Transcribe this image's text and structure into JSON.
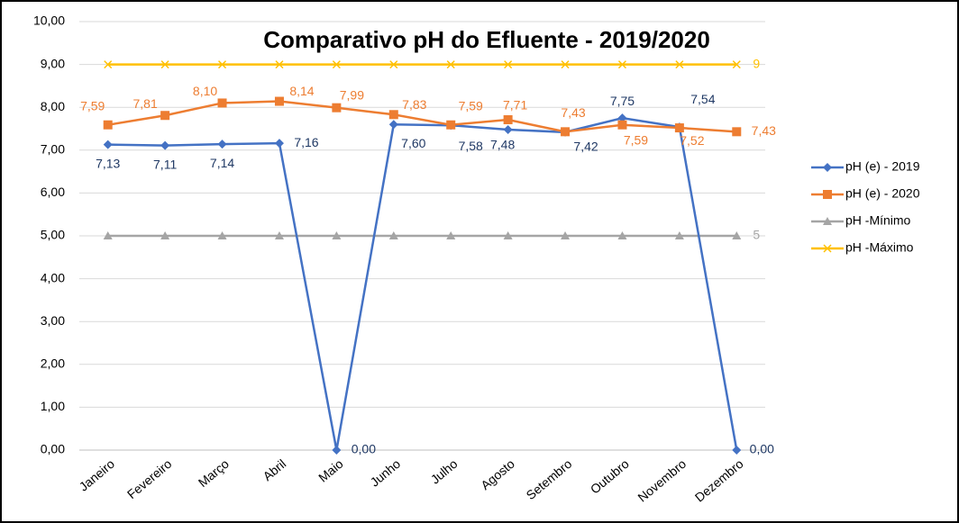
{
  "chart_data": {
    "type": "line",
    "title": "Comparativo pH do Efluente - 2019/2020",
    "categories": [
      "Janeiro",
      "Fevereiro",
      "Março",
      "Abril",
      "Maio",
      "Junho",
      "Julho",
      "Agosto",
      "Setembro",
      "Outubro",
      "Novembro",
      "Dezembro"
    ],
    "series": [
      {
        "name": "pH (e)  - 2019",
        "color": "#4472c4",
        "marker": "diamond",
        "values": [
          7.13,
          7.11,
          7.14,
          7.16,
          0.0,
          7.6,
          7.58,
          7.48,
          7.42,
          7.75,
          7.54,
          0.0
        ],
        "value_labels": [
          "7,13",
          "7,11",
          "7,14",
          "7,16",
          "0,00",
          "7,60",
          "7,58",
          "7,48",
          "7,42",
          "7,75",
          "7,54",
          "0,00"
        ]
      },
      {
        "name": "pH (e)  - 2020",
        "color": "#ed7d31",
        "marker": "square",
        "values": [
          7.59,
          7.81,
          8.1,
          8.14,
          7.99,
          7.83,
          7.59,
          7.71,
          7.43,
          7.59,
          7.52,
          7.43
        ],
        "value_labels": [
          "7,59",
          "7,81",
          "8,10",
          "8,14",
          "7,99",
          "7,83",
          "7,59",
          "7,71",
          "7,43",
          "7,59",
          "7,52",
          "7,43"
        ]
      },
      {
        "name": "pH -Mínimo",
        "color": "#a5a5a5",
        "marker": "triangle",
        "values": [
          5,
          5,
          5,
          5,
          5,
          5,
          5,
          5,
          5,
          5,
          5,
          5
        ],
        "value_labels": [
          null,
          null,
          null,
          null,
          null,
          null,
          null,
          null,
          null,
          null,
          null,
          "5"
        ]
      },
      {
        "name": "pH -Máximo",
        "color": "#ffc000",
        "marker": "x",
        "values": [
          9,
          9,
          9,
          9,
          9,
          9,
          9,
          9,
          9,
          9,
          9,
          9
        ],
        "value_labels": [
          null,
          null,
          null,
          null,
          null,
          null,
          null,
          null,
          null,
          null,
          null,
          "9"
        ]
      }
    ],
    "ylim": [
      0,
      10
    ],
    "yticks": [
      {
        "value": 0,
        "label": "0,00"
      },
      {
        "value": 1,
        "label": "1,00"
      },
      {
        "value": 2,
        "label": "2,00"
      },
      {
        "value": 3,
        "label": "3,00"
      },
      {
        "value": 4,
        "label": "4,00"
      },
      {
        "value": 5,
        "label": "5,00"
      },
      {
        "value": 6,
        "label": "6,00"
      },
      {
        "value": 7,
        "label": "7,00"
      },
      {
        "value": 8,
        "label": "8,00"
      },
      {
        "value": 9,
        "label": "9,00"
      },
      {
        "value": 10,
        "label": "10,00"
      }
    ],
    "grid": true,
    "legend": "right"
  }
}
